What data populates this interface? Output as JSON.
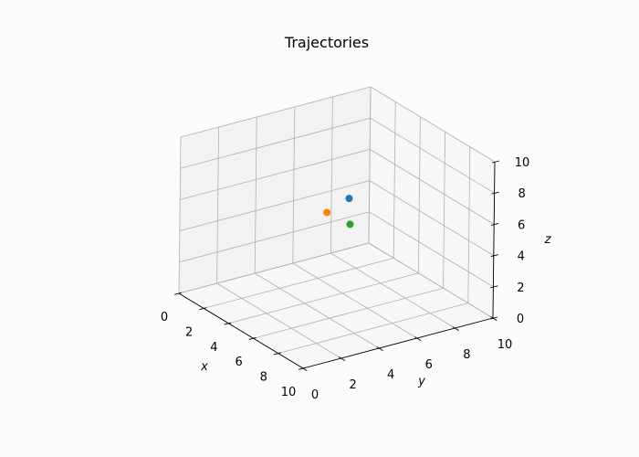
{
  "chart_data": {
    "type": "scatter",
    "projection": "3d",
    "title": "Trajectories",
    "xlabel": "x",
    "ylabel": "y",
    "zlabel": "z",
    "xlim": [
      0,
      10
    ],
    "ylim": [
      0,
      10
    ],
    "zlim": [
      0,
      10
    ],
    "xticks": [
      0,
      2,
      4,
      6,
      8,
      10
    ],
    "yticks": [
      0,
      2,
      4,
      6,
      8,
      10
    ],
    "zticks": [
      0,
      2,
      4,
      6,
      8,
      10
    ],
    "grid": true,
    "series": [
      {
        "color": "#1f77b4",
        "points": [
          {
            "x": 5.2,
            "y": 5.5,
            "z": 6.8
          }
        ]
      },
      {
        "color": "#ff7f0e",
        "points": [
          {
            "x": 4.8,
            "y": 4.6,
            "z": 6.0
          }
        ]
      },
      {
        "color": "#2ca02c",
        "points": [
          {
            "x": 5.6,
            "y": 5.3,
            "z": 5.4
          }
        ]
      }
    ]
  }
}
